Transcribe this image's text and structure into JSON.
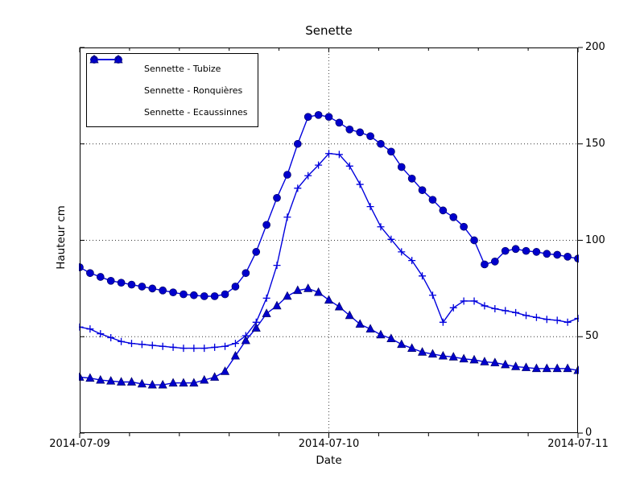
{
  "figure": {
    "background": "#ffffff"
  },
  "chart_data": {
    "type": "line",
    "title": "Senette",
    "xlabel": "Date",
    "ylabel": "Hauteur cm",
    "x_start": "2014-07-09 00:00",
    "sample_interval_hours": 1,
    "xlim_hours": [
      0,
      48
    ],
    "ylim": [
      0,
      200
    ],
    "y_ticks": [
      0,
      50,
      100,
      150,
      200
    ],
    "x_ticks": [
      {
        "hour": 0,
        "label": "2014-07-09"
      },
      {
        "hour": 24,
        "label": "2014-07-10"
      },
      {
        "hour": 48,
        "label": "2014-07-11"
      }
    ],
    "x_minor_divisions_per_day": 5,
    "grid": {
      "show": true,
      "style": "dotted",
      "y_lines": [
        50,
        100,
        150
      ],
      "x_lines_hours": [
        24
      ]
    },
    "legend_position": "upper-left",
    "colors": {
      "line": "#0000dd",
      "marker_fill": "#0000cc",
      "marker_edge": "#000066",
      "text": "#000000",
      "background": "#ffffff"
    },
    "series": [
      {
        "name": "Sennette - Tubize",
        "marker": "circle",
        "values": [
          86,
          83,
          81,
          79,
          78,
          77,
          76,
          75,
          74,
          73,
          72,
          71.5,
          71,
          71,
          72,
          76,
          83,
          94,
          108,
          122,
          134,
          150,
          164,
          165,
          164,
          161,
          157.5,
          156,
          154,
          150,
          146,
          138,
          132,
          126,
          121,
          115.5,
          112,
          107,
          100,
          87.5,
          89,
          94.5,
          95.5,
          94.5,
          94,
          93,
          92.5,
          91.5,
          90.5
        ]
      },
      {
        "name": "Sennette - Ronquières",
        "marker": "plus",
        "values": [
          55,
          54,
          51.5,
          49.5,
          47.5,
          46.5,
          46,
          45.5,
          45,
          44.5,
          44,
          44,
          44,
          44.5,
          45,
          46.5,
          50.5,
          57.5,
          70,
          87,
          112,
          127,
          133.5,
          139,
          145,
          144.5,
          138.5,
          129,
          117.5,
          107,
          100.5,
          94,
          89.5,
          81.5,
          71.5,
          57.5,
          65,
          68.5,
          68.5,
          66,
          64.5,
          63.5,
          62.5,
          61,
          60,
          59,
          58.5,
          57.5,
          59.5
        ]
      },
      {
        "name": "Sennette - Ecaussinnes",
        "marker": "triangle",
        "values": [
          29,
          28.5,
          27.5,
          27,
          26.5,
          26.5,
          25.5,
          25,
          25,
          26,
          26,
          26,
          27.5,
          29,
          32,
          40,
          48,
          54.5,
          62,
          66,
          71,
          74,
          75,
          73,
          69,
          65.5,
          61,
          56.5,
          54,
          51,
          49,
          46,
          44,
          42,
          41,
          40,
          39.5,
          38.5,
          38,
          37,
          36.5,
          35.5,
          34.5,
          34,
          33.5,
          33.5,
          33.5,
          33.5,
          32.5
        ]
      }
    ]
  }
}
